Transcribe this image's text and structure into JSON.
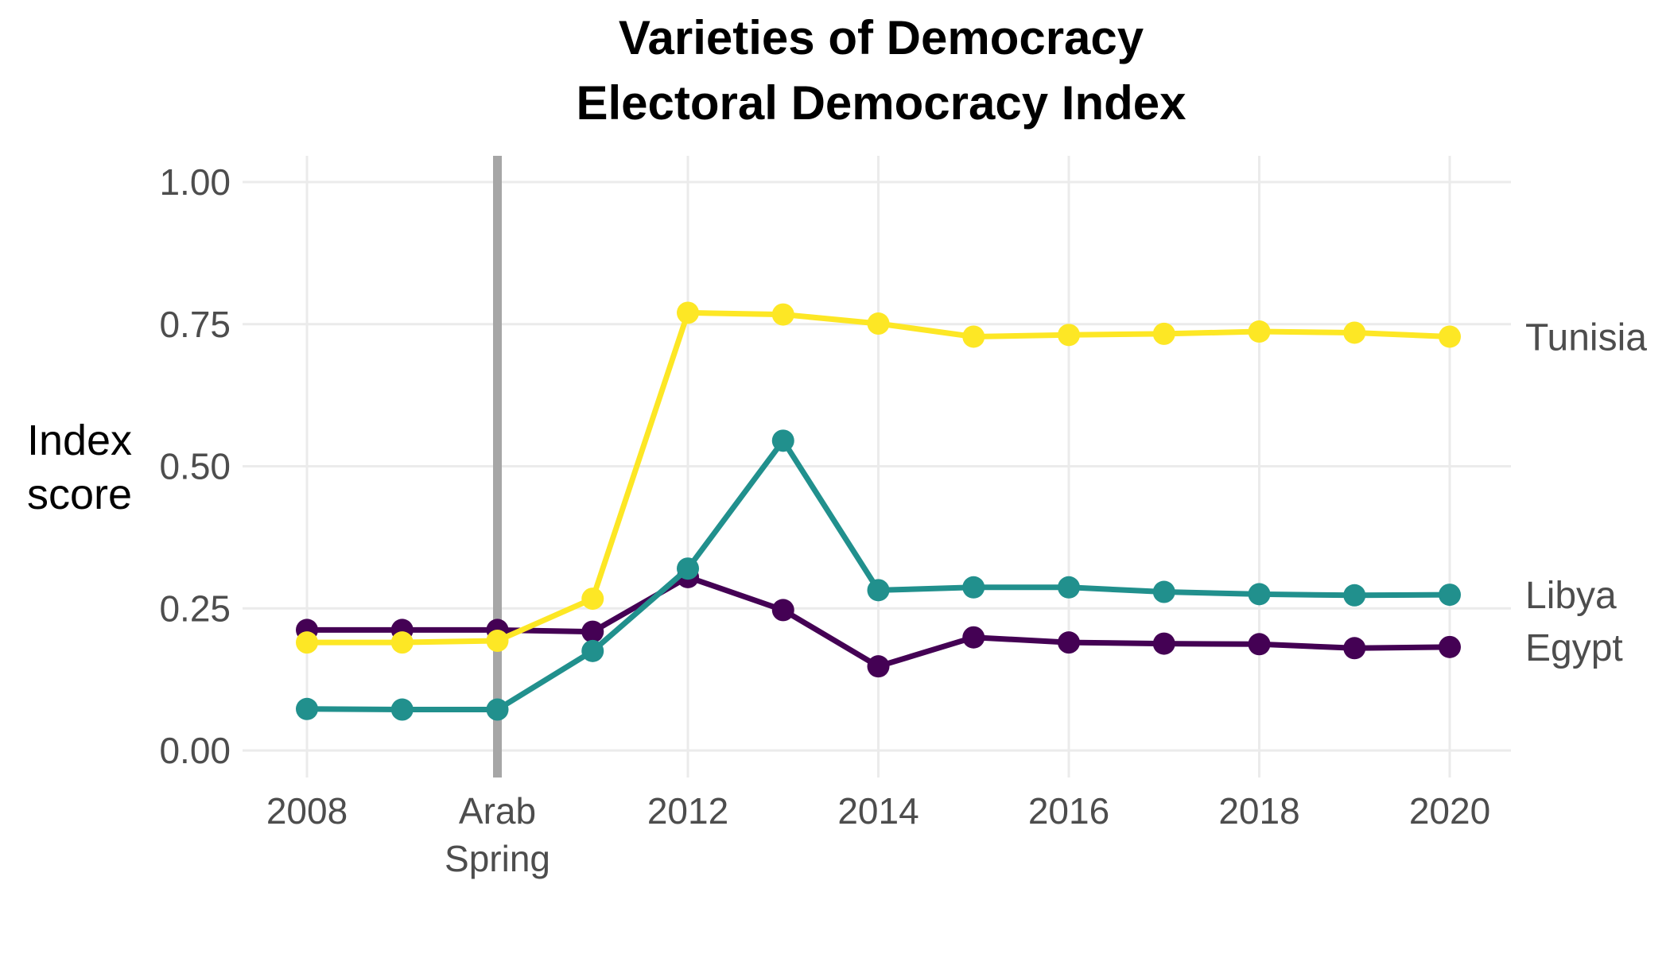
{
  "title": {
    "line1": "Varieties of Democracy",
    "line2": "Electoral Democracy Index"
  },
  "chart_data": {
    "type": "line",
    "title": "Varieties of Democracy Electoral Democracy Index",
    "xlabel": "",
    "ylabel": "Index score",
    "ylabel_lines": [
      "Index",
      "score"
    ],
    "xlim": [
      2008,
      2020
    ],
    "ylim": [
      0,
      1
    ],
    "x": [
      2008,
      2009,
      2010,
      2011,
      2012,
      2013,
      2014,
      2015,
      2016,
      2017,
      2018,
      2019,
      2020
    ],
    "x_ticks": [
      {
        "value": 2008,
        "lines": [
          "2008"
        ]
      },
      {
        "value": 2010,
        "lines": [
          "Arab",
          "Spring"
        ]
      },
      {
        "value": 2012,
        "lines": [
          "2012"
        ]
      },
      {
        "value": 2014,
        "lines": [
          "2014"
        ]
      },
      {
        "value": 2016,
        "lines": [
          "2016"
        ]
      },
      {
        "value": 2018,
        "lines": [
          "2018"
        ]
      },
      {
        "value": 2020,
        "lines": [
          "2020"
        ]
      }
    ],
    "y_ticks": [
      {
        "value": 0,
        "label": "0.00"
      },
      {
        "value": 0.25,
        "label": "0.25"
      },
      {
        "value": 0.5,
        "label": "0.50"
      },
      {
        "value": 0.75,
        "label": "0.75"
      },
      {
        "value": 1,
        "label": "1.00"
      }
    ],
    "reference_line": {
      "x": 2010,
      "color": "#a6a6a6"
    },
    "grid": true,
    "legend": "direct labels at right end of lines",
    "series": [
      {
        "name": "Egypt",
        "color": "#440154",
        "values": [
          0.212,
          0.212,
          0.212,
          0.209,
          0.305,
          0.247,
          0.148,
          0.199,
          0.19,
          0.188,
          0.187,
          0.18,
          0.182
        ]
      },
      {
        "name": "Libya",
        "color": "#21908d",
        "values": [
          0.073,
          0.072,
          0.072,
          0.175,
          0.32,
          0.545,
          0.282,
          0.287,
          0.287,
          0.279,
          0.275,
          0.273,
          0.274
        ]
      },
      {
        "name": "Tunisia",
        "color": "#fde725",
        "values": [
          0.19,
          0.19,
          0.193,
          0.267,
          0.77,
          0.767,
          0.751,
          0.728,
          0.731,
          0.733,
          0.737,
          0.735,
          0.728
        ]
      }
    ]
  }
}
